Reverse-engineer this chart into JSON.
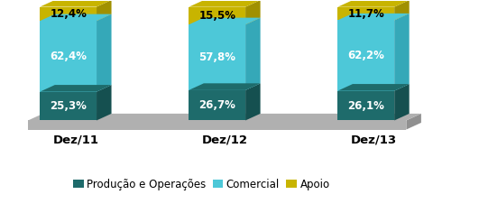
{
  "categories": [
    "Dez/11",
    "Dez/12",
    "Dez/13"
  ],
  "series": {
    "Produção e Operações": [
      25.3,
      26.7,
      26.1
    ],
    "Comercial": [
      62.4,
      57.8,
      62.2
    ],
    "Apoio": [
      12.4,
      15.5,
      11.7
    ]
  },
  "colors_front": {
    "Produção e Operações": "#1e6b6b",
    "Comercial": "#4dc8d8",
    "Apoio": "#c8b400"
  },
  "colors_side": {
    "Produção e Operações": "#155050",
    "Comercial": "#35a8b8",
    "Apoio": "#a09000"
  },
  "labels": {
    "Produção e Operações": [
      "25,3%",
      "26,7%",
      "26,1%"
    ],
    "Comercial": [
      "62,4%",
      "57,8%",
      "62,2%"
    ],
    "Apoio": [
      "12,4%",
      "15,5%",
      "11,7%"
    ]
  },
  "bar_width": 0.38,
  "depth": 0.1,
  "depth_y": 6.0,
  "platform_color": "#b0b0b0",
  "platform_side_color": "#909090",
  "background_color": "#ffffff",
  "label_fontsize": 8.5,
  "tick_fontsize": 9.5,
  "legend_fontsize": 8.5,
  "ylim": [
    0,
    105
  ],
  "xlim": [
    -0.45,
    2.75
  ]
}
